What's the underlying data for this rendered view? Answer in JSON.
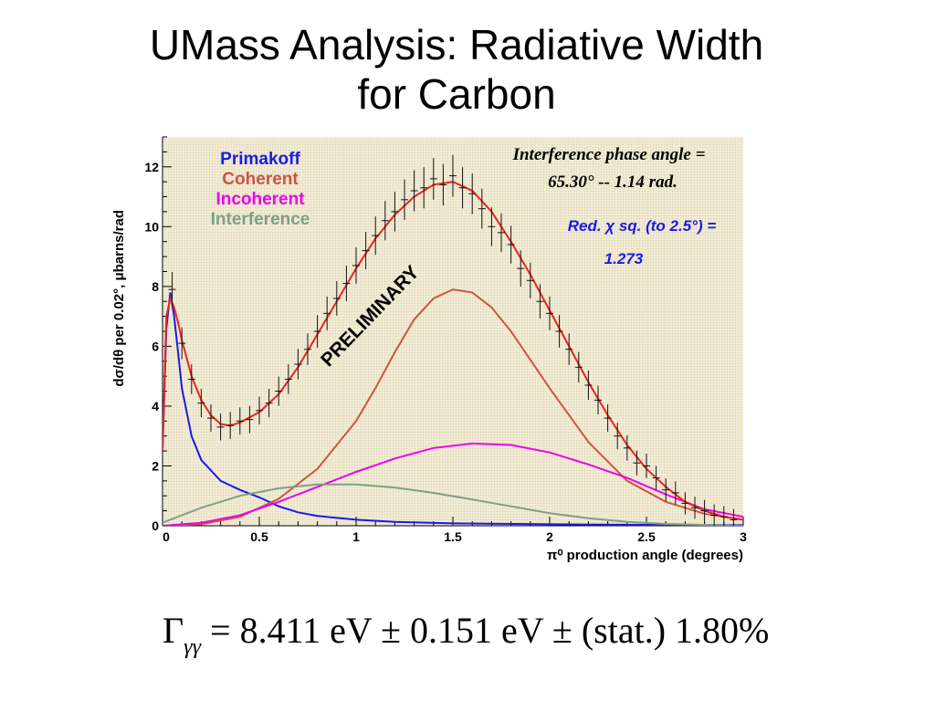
{
  "slide": {
    "title_line1": "UMass Analysis: Radiative Width",
    "title_line2": "for Carbon"
  },
  "formula": {
    "gamma": "Γ",
    "subscript": "γγ",
    "rest": " = 8.411 eV ± 0.151 eV ± (stat.) 1.80%"
  },
  "colors": {
    "plot_bg": "#f0ead2",
    "primakoff": "#1a1ae6",
    "coherent": "#cc5544",
    "incoherent": "#ee00ee",
    "interference": "#7f9f86",
    "fit": "#ee2222",
    "data": "#111111"
  },
  "chart_data": {
    "type": "line",
    "ylabel": "dσ/dθ per 0.02°, μbarns/rad",
    "xlabel": "π⁰ production angle (degrees)",
    "xlim": [
      0,
      3
    ],
    "ylim": [
      0,
      13
    ],
    "x_ticks": [
      "0",
      "0.5",
      "1",
      "1.5",
      "2",
      "2.5",
      "3"
    ],
    "y_ticks": [
      "0",
      "2",
      "4",
      "6",
      "8",
      "10",
      "12"
    ],
    "legend_placement": "top-left",
    "annotations": {
      "phase_line1": "Interference phase angle =",
      "phase_line2": "65.30° -- 1.14 rad.",
      "chisq_line1": "Red. χ sq. (to 2.5°) =",
      "chisq_line2": "1.273",
      "watermark": "PRELIMINARY"
    },
    "series": [
      {
        "name": "Primakoff",
        "x": [
          0.0,
          0.02,
          0.04,
          0.06,
          0.08,
          0.1,
          0.15,
          0.2,
          0.3,
          0.4,
          0.5,
          0.6,
          0.7,
          0.8,
          1.0,
          1.2,
          1.5,
          2.0,
          2.5,
          3.0
        ],
        "y": [
          2.5,
          6.6,
          7.8,
          7.0,
          5.8,
          4.6,
          3.0,
          2.2,
          1.5,
          1.2,
          0.95,
          0.65,
          0.45,
          0.33,
          0.2,
          0.13,
          0.08,
          0.05,
          0.03,
          0.02
        ]
      },
      {
        "name": "Coherent",
        "x": [
          0.0,
          0.2,
          0.4,
          0.6,
          0.8,
          1.0,
          1.1,
          1.2,
          1.3,
          1.4,
          1.5,
          1.6,
          1.7,
          1.8,
          2.0,
          2.2,
          2.4,
          2.6,
          2.8,
          3.0
        ],
        "y": [
          0.0,
          0.05,
          0.3,
          0.9,
          1.9,
          3.5,
          4.6,
          5.8,
          6.9,
          7.6,
          7.9,
          7.8,
          7.3,
          6.5,
          4.6,
          2.8,
          1.5,
          0.8,
          0.4,
          0.2
        ]
      },
      {
        "name": "Incoherent",
        "x": [
          0.0,
          0.2,
          0.4,
          0.6,
          0.8,
          1.0,
          1.2,
          1.4,
          1.6,
          1.8,
          2.0,
          2.2,
          2.4,
          2.6,
          2.8,
          3.0
        ],
        "y": [
          0.0,
          0.1,
          0.35,
          0.8,
          1.3,
          1.8,
          2.25,
          2.6,
          2.75,
          2.7,
          2.45,
          2.05,
          1.6,
          1.05,
          0.55,
          0.3
        ]
      },
      {
        "name": "Interference",
        "x": [
          0.0,
          0.2,
          0.4,
          0.6,
          0.8,
          1.0,
          1.2,
          1.4,
          1.6,
          1.8,
          2.0,
          2.2,
          2.4,
          2.6,
          2.8,
          3.0
        ],
        "y": [
          0.1,
          0.6,
          1.0,
          1.25,
          1.38,
          1.38,
          1.28,
          1.1,
          0.88,
          0.65,
          0.42,
          0.25,
          0.13,
          0.06,
          0.03,
          0.0
        ]
      },
      {
        "name": "Fit",
        "x": [
          0.0,
          0.02,
          0.04,
          0.06,
          0.08,
          0.1,
          0.15,
          0.2,
          0.25,
          0.3,
          0.35,
          0.4,
          0.5,
          0.6,
          0.7,
          0.8,
          0.9,
          1.0,
          1.1,
          1.2,
          1.3,
          1.4,
          1.5,
          1.6,
          1.7,
          1.8,
          1.9,
          2.0,
          2.1,
          2.2,
          2.3,
          2.4,
          2.5,
          2.6,
          2.7,
          2.8,
          2.9,
          3.0
        ],
        "y": [
          2.5,
          7.0,
          7.6,
          7.3,
          6.8,
          6.2,
          5.0,
          4.2,
          3.7,
          3.4,
          3.35,
          3.45,
          3.8,
          4.4,
          5.3,
          6.4,
          7.5,
          8.6,
          9.6,
          10.4,
          11.0,
          11.4,
          11.5,
          11.2,
          10.5,
          9.5,
          8.4,
          7.2,
          6.0,
          4.8,
          3.7,
          2.7,
          1.9,
          1.3,
          0.8,
          0.5,
          0.3,
          0.2
        ]
      },
      {
        "name": "Data",
        "x": [
          0.05,
          0.1,
          0.15,
          0.2,
          0.25,
          0.3,
          0.35,
          0.4,
          0.45,
          0.5,
          0.55,
          0.6,
          0.65,
          0.7,
          0.75,
          0.8,
          0.85,
          0.9,
          0.95,
          1.0,
          1.05,
          1.1,
          1.15,
          1.2,
          1.25,
          1.3,
          1.35,
          1.4,
          1.45,
          1.5,
          1.55,
          1.6,
          1.65,
          1.7,
          1.75,
          1.8,
          1.85,
          1.9,
          1.95,
          2.0,
          2.05,
          2.1,
          2.15,
          2.2,
          2.25,
          2.3,
          2.35,
          2.4,
          2.45,
          2.5,
          2.55,
          2.6,
          2.65,
          2.7,
          2.75,
          2.8,
          2.85,
          2.9,
          2.95
        ],
        "y": [
          7.9,
          6.1,
          4.9,
          4.1,
          3.6,
          3.3,
          3.35,
          3.5,
          3.55,
          3.85,
          4.1,
          4.5,
          4.9,
          5.4,
          5.9,
          6.5,
          7.1,
          7.6,
          8.1,
          8.7,
          9.2,
          9.7,
          10.2,
          10.5,
          10.9,
          11.2,
          11.3,
          11.6,
          11.4,
          11.7,
          11.3,
          11.1,
          10.6,
          10.0,
          9.8,
          9.4,
          8.6,
          8.2,
          7.5,
          7.1,
          6.5,
          5.9,
          5.3,
          4.7,
          4.2,
          3.6,
          3.0,
          2.6,
          2.1,
          2.0,
          1.6,
          1.2,
          1.1,
          0.75,
          0.6,
          0.5,
          0.35,
          0.3,
          0.2
        ]
      }
    ]
  }
}
